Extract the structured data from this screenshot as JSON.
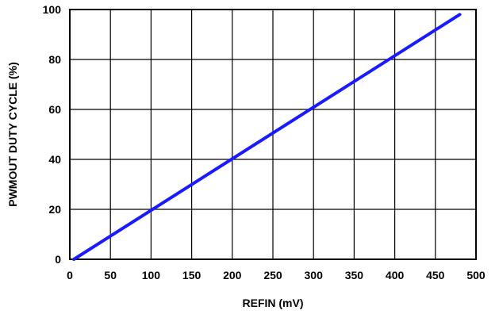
{
  "chart_data": {
    "type": "line",
    "title": "",
    "xlabel": "REFIN (mV)",
    "ylabel": "PWMOUT DUTY CYCLE (%)",
    "xlim": [
      0,
      500
    ],
    "ylim": [
      0,
      100
    ],
    "x_ticks": [
      "0",
      "50",
      "100",
      "150",
      "200",
      "250",
      "300",
      "350",
      "400",
      "450",
      "500"
    ],
    "y_ticks": [
      "0",
      "20",
      "40",
      "60",
      "80",
      "100"
    ],
    "grid": true,
    "series": [
      {
        "color": "#1a1aff",
        "x": [
          5,
          480
        ],
        "y": [
          0,
          98
        ]
      }
    ]
  }
}
